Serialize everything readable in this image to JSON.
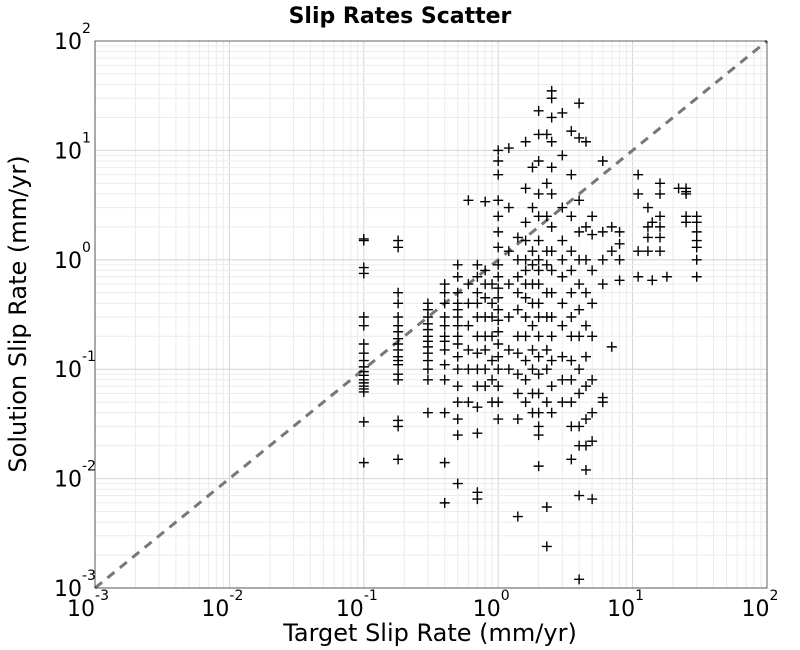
{
  "chart_data": {
    "type": "scatter",
    "title": "Slip Rates Scatter",
    "xlabel": "Target Slip Rate (mm/yr)",
    "ylabel": "Solution Slip Rate (mm/yr)",
    "xscale": "log",
    "yscale": "log",
    "xlim": [
      0.001,
      100
    ],
    "ylim": [
      0.001,
      100
    ],
    "grid": true,
    "marker": "+",
    "marker_color": "#000000",
    "reference_line": {
      "style": "dashed",
      "color": "#777777",
      "points": [
        [
          0.001,
          0.001
        ],
        [
          100,
          100
        ]
      ]
    },
    "x_ticks": [
      {
        "base": "10",
        "exp": "-3"
      },
      {
        "base": "10",
        "exp": "-2"
      },
      {
        "base": "10",
        "exp": "-1"
      },
      {
        "base": "10",
        "exp": "0"
      },
      {
        "base": "10",
        "exp": "1"
      },
      {
        "base": "10",
        "exp": "2"
      }
    ],
    "y_ticks": [
      {
        "base": "10",
        "exp": "-3"
      },
      {
        "base": "10",
        "exp": "-2"
      },
      {
        "base": "10",
        "exp": "-1"
      },
      {
        "base": "10",
        "exp": "0"
      },
      {
        "base": "10",
        "exp": "1"
      },
      {
        "base": "10",
        "exp": "2"
      }
    ],
    "points": [
      [
        0.1,
        1.55
      ],
      [
        0.1,
        1.5
      ],
      [
        0.1,
        0.85
      ],
      [
        0.1,
        0.75
      ],
      [
        0.1,
        0.3
      ],
      [
        0.1,
        0.25
      ],
      [
        0.1,
        0.17
      ],
      [
        0.1,
        0.14
      ],
      [
        0.1,
        0.12
      ],
      [
        0.1,
        0.105
      ],
      [
        0.1,
        0.095
      ],
      [
        0.1,
        0.088
      ],
      [
        0.1,
        0.08
      ],
      [
        0.1,
        0.075
      ],
      [
        0.1,
        0.07
      ],
      [
        0.1,
        0.066
      ],
      [
        0.1,
        0.062
      ],
      [
        0.1,
        0.033
      ],
      [
        0.1,
        0.014
      ],
      [
        0.18,
        1.5
      ],
      [
        0.18,
        1.3
      ],
      [
        0.18,
        0.5
      ],
      [
        0.18,
        0.4
      ],
      [
        0.18,
        0.3
      ],
      [
        0.18,
        0.25
      ],
      [
        0.18,
        0.22
      ],
      [
        0.18,
        0.19
      ],
      [
        0.18,
        0.17
      ],
      [
        0.18,
        0.15
      ],
      [
        0.18,
        0.13
      ],
      [
        0.18,
        0.12
      ],
      [
        0.18,
        0.11
      ],
      [
        0.18,
        0.09
      ],
      [
        0.18,
        0.08
      ],
      [
        0.18,
        0.034
      ],
      [
        0.18,
        0.03
      ],
      [
        0.18,
        0.015
      ],
      [
        0.3,
        0.4
      ],
      [
        0.3,
        0.35
      ],
      [
        0.3,
        0.3
      ],
      [
        0.3,
        0.26
      ],
      [
        0.3,
        0.23
      ],
      [
        0.3,
        0.2
      ],
      [
        0.3,
        0.18
      ],
      [
        0.3,
        0.16
      ],
      [
        0.3,
        0.14
      ],
      [
        0.3,
        0.12
      ],
      [
        0.3,
        0.1
      ],
      [
        0.3,
        0.08
      ],
      [
        0.3,
        0.04
      ],
      [
        0.4,
        0.6
      ],
      [
        0.4,
        0.5
      ],
      [
        0.4,
        0.4
      ],
      [
        0.4,
        0.3
      ],
      [
        0.4,
        0.25
      ],
      [
        0.4,
        0.2
      ],
      [
        0.4,
        0.18
      ],
      [
        0.4,
        0.15
      ],
      [
        0.4,
        0.11
      ],
      [
        0.4,
        0.08
      ],
      [
        0.4,
        0.04
      ],
      [
        0.4,
        0.014
      ],
      [
        0.4,
        0.006
      ],
      [
        0.5,
        0.9
      ],
      [
        0.5,
        0.7
      ],
      [
        0.5,
        0.5
      ],
      [
        0.5,
        0.4
      ],
      [
        0.5,
        0.35
      ],
      [
        0.5,
        0.3
      ],
      [
        0.5,
        0.25
      ],
      [
        0.5,
        0.2
      ],
      [
        0.5,
        0.17
      ],
      [
        0.5,
        0.13
      ],
      [
        0.5,
        0.1
      ],
      [
        0.5,
        0.07
      ],
      [
        0.5,
        0.05
      ],
      [
        0.5,
        0.035
      ],
      [
        0.5,
        0.025
      ],
      [
        0.5,
        0.009
      ],
      [
        0.6,
        3.5
      ],
      [
        0.6,
        0.6
      ],
      [
        0.6,
        0.4
      ],
      [
        0.6,
        0.25
      ],
      [
        0.6,
        0.15
      ],
      [
        0.6,
        0.1
      ],
      [
        0.6,
        0.05
      ],
      [
        0.7,
        0.9
      ],
      [
        0.7,
        0.7
      ],
      [
        0.7,
        0.5
      ],
      [
        0.7,
        0.4
      ],
      [
        0.7,
        0.3
      ],
      [
        0.7,
        0.2
      ],
      [
        0.7,
        0.14
      ],
      [
        0.7,
        0.1
      ],
      [
        0.7,
        0.07
      ],
      [
        0.7,
        0.045
      ],
      [
        0.7,
        0.026
      ],
      [
        0.7,
        0.0075
      ],
      [
        0.7,
        0.0065
      ],
      [
        0.8,
        3.4
      ],
      [
        0.8,
        0.8
      ],
      [
        0.8,
        0.6
      ],
      [
        0.8,
        0.45
      ],
      [
        0.8,
        0.3
      ],
      [
        0.8,
        0.2
      ],
      [
        0.8,
        0.15
      ],
      [
        0.8,
        0.1
      ],
      [
        0.8,
        0.07
      ],
      [
        0.9,
        0.6
      ],
      [
        0.9,
        0.4
      ],
      [
        0.9,
        0.3
      ],
      [
        0.9,
        0.2
      ],
      [
        0.9,
        0.12
      ],
      [
        0.9,
        0.08
      ],
      [
        0.9,
        0.05
      ],
      [
        1.0,
        10
      ],
      [
        1.0,
        8
      ],
      [
        1.0,
        6
      ],
      [
        1.0,
        3.5
      ],
      [
        1.0,
        2.5
      ],
      [
        1.0,
        1.8
      ],
      [
        1.0,
        1.3
      ],
      [
        1.0,
        0.9
      ],
      [
        1.0,
        0.7
      ],
      [
        1.0,
        0.55
      ],
      [
        1.0,
        0.45
      ],
      [
        1.0,
        0.35
      ],
      [
        1.0,
        0.28
      ],
      [
        1.0,
        0.22
      ],
      [
        1.0,
        0.17
      ],
      [
        1.0,
        0.13
      ],
      [
        1.0,
        0.1
      ],
      [
        1.0,
        0.07
      ],
      [
        1.0,
        0.05
      ],
      [
        1.0,
        0.035
      ],
      [
        1.2,
        10.5
      ],
      [
        1.2,
        3
      ],
      [
        1.2,
        1.2
      ],
      [
        1.2,
        0.6
      ],
      [
        1.2,
        0.3
      ],
      [
        1.2,
        0.15
      ],
      [
        1.2,
        0.1
      ],
      [
        1.4,
        1.6
      ],
      [
        1.4,
        1.0
      ],
      [
        1.4,
        0.7
      ],
      [
        1.4,
        0.5
      ],
      [
        1.4,
        0.35
      ],
      [
        1.4,
        0.2
      ],
      [
        1.4,
        0.14
      ],
      [
        1.4,
        0.09
      ],
      [
        1.4,
        0.06
      ],
      [
        1.4,
        0.035
      ],
      [
        1.4,
        0.0045
      ],
      [
        1.6,
        12
      ],
      [
        1.6,
        4.5
      ],
      [
        1.6,
        2.2
      ],
      [
        1.6,
        1.5
      ],
      [
        1.6,
        1.0
      ],
      [
        1.6,
        0.8
      ],
      [
        1.6,
        0.6
      ],
      [
        1.6,
        0.45
      ],
      [
        1.6,
        0.3
      ],
      [
        1.6,
        0.2
      ],
      [
        1.6,
        0.12
      ],
      [
        1.6,
        0.08
      ],
      [
        1.6,
        0.05
      ],
      [
        1.8,
        7
      ],
      [
        1.8,
        3
      ],
      [
        1.8,
        1.2
      ],
      [
        1.8,
        0.9
      ],
      [
        1.8,
        0.6
      ],
      [
        1.8,
        0.4
      ],
      [
        1.8,
        0.25
      ],
      [
        1.8,
        0.15
      ],
      [
        1.8,
        0.1
      ],
      [
        1.8,
        0.06
      ],
      [
        1.8,
        0.04
      ],
      [
        2.0,
        23
      ],
      [
        2.0,
        14
      ],
      [
        2.0,
        8
      ],
      [
        2.0,
        4
      ],
      [
        2.0,
        2.5
      ],
      [
        2.0,
        1.5
      ],
      [
        2.0,
        1.0
      ],
      [
        2.0,
        0.8
      ],
      [
        2.0,
        0.6
      ],
      [
        2.0,
        0.4
      ],
      [
        2.0,
        0.3
      ],
      [
        2.0,
        0.2
      ],
      [
        2.0,
        0.13
      ],
      [
        2.0,
        0.09
      ],
      [
        2.0,
        0.06
      ],
      [
        2.0,
        0.04
      ],
      [
        2.0,
        0.03
      ],
      [
        2.0,
        0.025
      ],
      [
        2.0,
        0.013
      ],
      [
        2.3,
        14
      ],
      [
        2.3,
        5
      ],
      [
        2.3,
        2.5
      ],
      [
        2.3,
        1.2
      ],
      [
        2.3,
        0.9
      ],
      [
        2.3,
        0.5
      ],
      [
        2.3,
        0.3
      ],
      [
        2.3,
        0.15
      ],
      [
        2.3,
        0.1
      ],
      [
        2.3,
        0.05
      ],
      [
        2.3,
        0.0055
      ],
      [
        2.3,
        0.0024
      ],
      [
        2.5,
        35
      ],
      [
        2.5,
        30
      ],
      [
        2.5,
        20
      ],
      [
        2.5,
        12
      ],
      [
        2.5,
        7
      ],
      [
        2.5,
        4
      ],
      [
        2.5,
        2
      ],
      [
        2.5,
        1.2
      ],
      [
        2.5,
        0.8
      ],
      [
        2.5,
        0.5
      ],
      [
        2.5,
        0.3
      ],
      [
        2.5,
        0.2
      ],
      [
        2.5,
        0.12
      ],
      [
        2.5,
        0.07
      ],
      [
        2.5,
        0.04
      ],
      [
        3.0,
        22
      ],
      [
        3.0,
        9
      ],
      [
        3.0,
        3
      ],
      [
        3.0,
        1.5
      ],
      [
        3.0,
        1.0
      ],
      [
        3.0,
        0.7
      ],
      [
        3.0,
        0.4
      ],
      [
        3.0,
        0.25
      ],
      [
        3.0,
        0.13
      ],
      [
        3.0,
        0.08
      ],
      [
        3.0,
        0.05
      ],
      [
        3.5,
        15
      ],
      [
        3.5,
        6
      ],
      [
        3.5,
        2.5
      ],
      [
        3.5,
        1.2
      ],
      [
        3.5,
        0.8
      ],
      [
        3.5,
        0.5
      ],
      [
        3.5,
        0.3
      ],
      [
        3.5,
        0.2
      ],
      [
        3.5,
        0.12
      ],
      [
        3.5,
        0.08
      ],
      [
        3.5,
        0.05
      ],
      [
        3.5,
        0.03
      ],
      [
        3.5,
        0.015
      ],
      [
        4.0,
        27
      ],
      [
        4.0,
        13
      ],
      [
        4.0,
        3.5
      ],
      [
        4.0,
        1.8
      ],
      [
        4.0,
        1.0
      ],
      [
        4.0,
        0.6
      ],
      [
        4.0,
        0.35
      ],
      [
        4.0,
        0.2
      ],
      [
        4.0,
        0.1
      ],
      [
        4.0,
        0.06
      ],
      [
        4.0,
        0.03
      ],
      [
        4.0,
        0.02
      ],
      [
        4.0,
        0.007
      ],
      [
        4.0,
        0.0012
      ],
      [
        4.5,
        12
      ],
      [
        4.5,
        2
      ],
      [
        4.5,
        1.0
      ],
      [
        4.5,
        0.5
      ],
      [
        4.5,
        0.25
      ],
      [
        4.5,
        0.13
      ],
      [
        4.5,
        0.07
      ],
      [
        4.5,
        0.035
      ],
      [
        4.5,
        0.02
      ],
      [
        4.5,
        0.012
      ],
      [
        5.0,
        2.5
      ],
      [
        5.0,
        1.7
      ],
      [
        5.0,
        0.8
      ],
      [
        5.0,
        0.4
      ],
      [
        5.0,
        0.2
      ],
      [
        5.0,
        0.08
      ],
      [
        5.0,
        0.04
      ],
      [
        5.0,
        0.022
      ],
      [
        5.0,
        0.0065
      ],
      [
        6.0,
        8
      ],
      [
        6.0,
        1.8
      ],
      [
        6.0,
        1.0
      ],
      [
        6.0,
        0.6
      ],
      [
        6.0,
        0.05
      ],
      [
        6.0,
        0.055
      ],
      [
        7.0,
        2
      ],
      [
        7.0,
        1.2
      ],
      [
        7.0,
        0.16
      ],
      [
        8.0,
        1.8
      ],
      [
        8.0,
        1.4
      ],
      [
        8.0,
        1.0
      ],
      [
        8.0,
        0.65
      ],
      [
        11,
        6
      ],
      [
        11,
        4
      ],
      [
        11,
        1.2
      ],
      [
        11,
        0.7
      ],
      [
        13,
        3
      ],
      [
        13,
        2
      ],
      [
        13,
        1.6
      ],
      [
        13,
        1.2
      ],
      [
        14,
        2.2
      ],
      [
        14,
        0.65
      ],
      [
        16,
        5
      ],
      [
        16,
        4
      ],
      [
        16,
        2.5
      ],
      [
        16,
        2
      ],
      [
        16,
        1.6
      ],
      [
        16,
        1.2
      ],
      [
        18,
        0.7
      ],
      [
        22,
        4.5
      ],
      [
        25,
        4.5
      ],
      [
        25,
        4.2
      ],
      [
        25,
        4.0
      ],
      [
        25,
        2.5
      ],
      [
        25,
        2.2
      ],
      [
        30,
        2.5
      ],
      [
        30,
        2.2
      ],
      [
        30,
        1.8
      ],
      [
        30,
        1.5
      ],
      [
        30,
        1.3
      ],
      [
        30,
        1.0
      ],
      [
        30,
        0.7
      ]
    ]
  }
}
